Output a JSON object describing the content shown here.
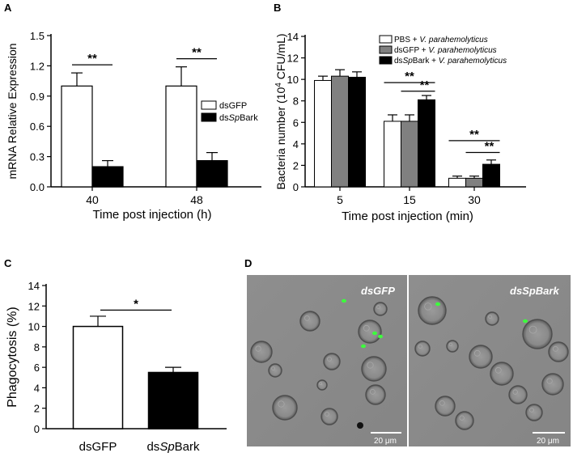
{
  "chart_data": [
    {
      "panel": "A",
      "type": "bar",
      "categories": [
        "40",
        "48"
      ],
      "series": [
        {
          "name": "dsGFP",
          "values": [
            1.0,
            1.0
          ],
          "errors": [
            0.13,
            0.19
          ],
          "color": "#ffffff"
        },
        {
          "name": "dsSpBark",
          "values": [
            0.2,
            0.26
          ],
          "errors": [
            0.06,
            0.08
          ],
          "color": "#000000"
        }
      ],
      "yticks": [
        "0.0",
        "0.3",
        "0.6",
        "0.9",
        "1.2",
        "1.5"
      ],
      "ylim": [
        0,
        1.5
      ],
      "xlabel": "Time post injection (h)",
      "ylabel": "mRNA Relative Expression",
      "significance": [
        "**",
        "**"
      ],
      "legend_position": "right"
    },
    {
      "panel": "B",
      "type": "bar",
      "categories": [
        "5",
        "15",
        "30"
      ],
      "series": [
        {
          "name": "PBS + V. parahemolyticus",
          "values": [
            9.9,
            6.1,
            0.8
          ],
          "errors": [
            0.4,
            0.6,
            0.2
          ],
          "color": "#ffffff"
        },
        {
          "name": "dsGFP + V. parahemolyticus",
          "values": [
            10.3,
            6.1,
            0.8
          ],
          "errors": [
            0.6,
            0.6,
            0.2
          ],
          "color": "#808080"
        },
        {
          "name": "dsSpBark + V. parahemolyticus",
          "values": [
            10.2,
            8.1,
            2.1
          ],
          "errors": [
            0.5,
            0.4,
            0.4
          ],
          "color": "#000000"
        }
      ],
      "yticks": [
        "0",
        "2",
        "4",
        "6",
        "8",
        "10",
        "12",
        "14"
      ],
      "ylim": [
        0,
        14
      ],
      "xlabel": "Time post injection (min)",
      "ylabel": "Bacteria number (10",
      "ylabel_sup": "4",
      "ylabel_tail": " CFU/mL)",
      "significance": [
        "**",
        "**",
        "**",
        "**"
      ],
      "legend_position": "top"
    },
    {
      "panel": "C",
      "type": "bar",
      "categories": [
        "dsGFP",
        "dsSpBark"
      ],
      "values": [
        10.0,
        5.5
      ],
      "errors": [
        1.0,
        0.5
      ],
      "colors": [
        "#ffffff",
        "#000000"
      ],
      "yticks": [
        "0",
        "2",
        "4",
        "6",
        "8",
        "10",
        "12",
        "14"
      ],
      "ylim": [
        0,
        14
      ],
      "ylabel": "Phagocytosis (%)",
      "significance": [
        "*"
      ]
    }
  ],
  "panel_letters": [
    "A",
    "B",
    "C",
    "D"
  ],
  "micrograph": {
    "left_label": "dsGFP",
    "right_label": "dsSpBark",
    "scale_bar_left": "20 μm",
    "scale_bar_right": "20 μm"
  },
  "colors": {
    "background": "#ffffff",
    "micro_bg": "#8c8c8c",
    "fluorescence": "#3cff3c"
  }
}
